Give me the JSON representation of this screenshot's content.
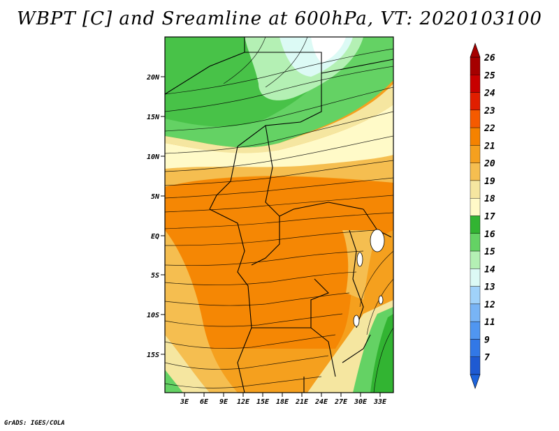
{
  "title": "WBPT [C] and Sreamline at 600hPa, VT: 2020103100",
  "footer": "GrADS: IGES/COLA",
  "map": {
    "lat_labels": [
      "20N",
      "15N",
      "10N",
      "5N",
      "EQ",
      "5S",
      "10S",
      "15S"
    ],
    "lon_labels": [
      "3E",
      "6E",
      "9E",
      "12E",
      "15E",
      "18E",
      "21E",
      "24E",
      "27E",
      "30E",
      "33E"
    ]
  },
  "colorbar": {
    "labels": [
      "26",
      "25",
      "24",
      "23",
      "22",
      "21",
      "20",
      "19",
      "18",
      "17",
      "16",
      "15",
      "14",
      "13",
      "12",
      "11",
      "9",
      "7"
    ],
    "colors": [
      "#a50000",
      "#c80000",
      "#e11e00",
      "#f55a00",
      "#f58200",
      "#f5a01e",
      "#f5be50",
      "#f5e6a0",
      "#fffac8",
      "#32b432",
      "#64d264",
      "#b4f0b4",
      "#dcfaf5",
      "#a0d2fa",
      "#78b4f5",
      "#5096f0",
      "#3278e6",
      "#1e5ad2"
    ]
  }
}
